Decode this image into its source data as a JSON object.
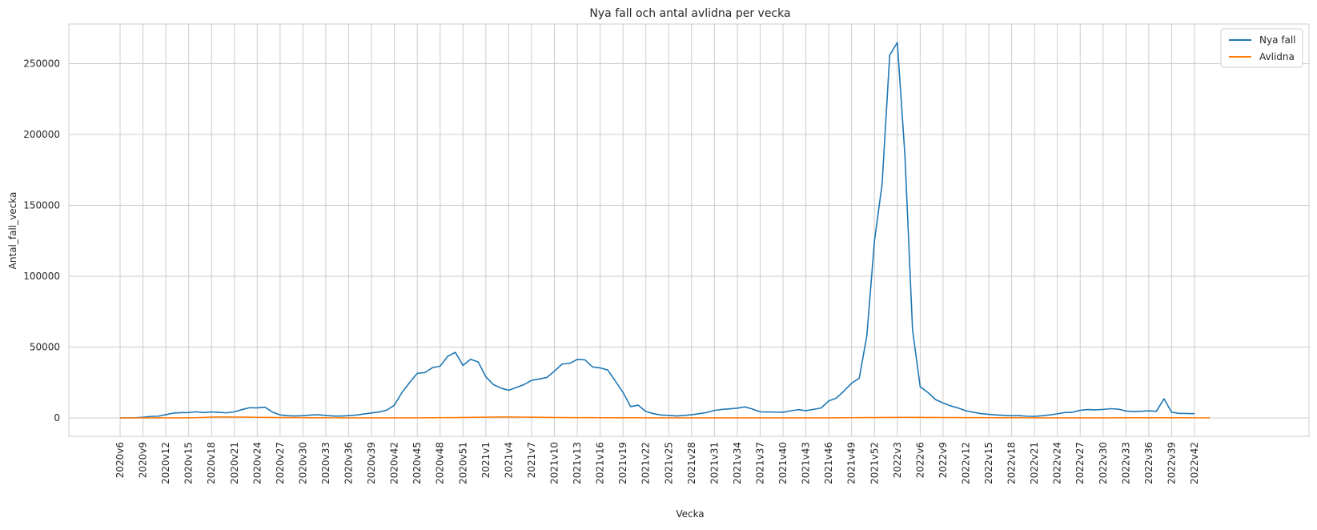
{
  "chart_data": {
    "type": "line",
    "title": "Nya fall och antal avlidna per vecka",
    "xlabel": "Vecka",
    "ylabel": "Antal_fall_vecka",
    "ylim": [
      -13000,
      278000
    ],
    "yticks": [
      0,
      50000,
      100000,
      150000,
      200000,
      250000
    ],
    "xtick_labels": [
      "2020v6",
      "2020v9",
      "2020v12",
      "2020v15",
      "2020v18",
      "2020v21",
      "2020v24",
      "2020v27",
      "2020v30",
      "2020v33",
      "2020v36",
      "2020v39",
      "2020v42",
      "2020v45",
      "2020v48",
      "2020v51",
      "2021v1",
      "2021v4",
      "2021v7",
      "2021v10",
      "2021v13",
      "2021v16",
      "2021v19",
      "2021v22",
      "2021v25",
      "2021v28",
      "2021v31",
      "2021v34",
      "2021v37",
      "2021v40",
      "2021v43",
      "2021v46",
      "2021v49",
      "2021v52",
      "2022v3",
      "2022v6",
      "2022v9",
      "2022v12",
      "2022v15",
      "2022v18",
      "2022v21",
      "2022v24",
      "2022v27",
      "2022v30",
      "2022v33",
      "2022v36",
      "2022v39",
      "2022v42"
    ],
    "grid": true,
    "legend_position": "top-right",
    "series": [
      {
        "name": "Nya fall",
        "color": "#1f77b4",
        "values": [
          1,
          10,
          90,
          450,
          1050,
          1200,
          2300,
          3400,
          3700,
          3800,
          4300,
          3800,
          4200,
          3900,
          3600,
          4300,
          5900,
          7200,
          7100,
          7600,
          4100,
          2100,
          1600,
          1400,
          1600,
          2000,
          2200,
          1700,
          1300,
          1300,
          1600,
          2000,
          2800,
          3500,
          4200,
          5500,
          9000,
          18000,
          25000,
          31500,
          32000,
          35500,
          36500,
          43500,
          46300,
          37000,
          41400,
          39500,
          29000,
          23500,
          21000,
          19500,
          21500,
          23500,
          26500,
          27500,
          28500,
          33000,
          38000,
          38500,
          41300,
          41000,
          36000,
          35300,
          33800,
          26000,
          18000,
          8000,
          9000,
          4500,
          3000,
          2000,
          1800,
          1400,
          1700,
          2200,
          3000,
          3800,
          5300,
          6000,
          6400,
          6900,
          7800,
          6200,
          4300,
          4200,
          4100,
          4000,
          5000,
          5800,
          5100,
          6000,
          7000,
          12000,
          14000,
          19000,
          24500,
          28000,
          58000,
          125000,
          165000,
          256000,
          265000,
          185000,
          62000,
          22000,
          18000,
          13000,
          10500,
          8500,
          7000,
          5000,
          4000,
          3000,
          2500,
          2100,
          1800,
          1500,
          1600,
          1200,
          1100,
          1500,
          2100,
          2900,
          3800,
          4000,
          5400,
          5900,
          5700,
          6000,
          6500,
          6200,
          4900,
          4500,
          4700,
          5000,
          4700,
          13500,
          4000,
          3200,
          3100,
          3000
        ],
        "values_step": "1 week"
      },
      {
        "name": "Avlidna",
        "color": "#ff7f0e",
        "values": [
          0,
          0,
          0,
          0,
          5,
          10,
          20,
          20,
          35,
          80,
          150,
          350,
          600,
          680,
          650,
          600,
          570,
          500,
          420,
          370,
          300,
          260,
          220,
          200,
          160,
          120,
          100,
          80,
          70,
          60,
          50,
          40,
          35,
          30,
          30,
          30,
          35,
          40,
          50,
          70,
          90,
          120,
          160,
          200,
          260,
          330,
          420,
          480,
          550,
          600,
          640,
          660,
          620,
          560,
          500,
          440,
          380,
          320,
          270,
          230,
          200,
          180,
          160,
          140,
          120,
          110,
          100,
          90,
          80,
          70,
          60,
          55,
          50,
          45,
          40,
          40,
          40,
          40,
          40,
          40,
          40,
          40,
          40,
          40,
          40,
          40,
          40,
          40,
          40,
          40,
          40,
          40,
          50,
          60,
          80,
          100,
          140,
          180,
          220,
          260,
          300,
          350,
          400,
          420,
          400,
          370,
          340,
          310,
          280,
          250,
          220,
          200,
          180,
          160,
          140,
          120,
          100,
          90,
          80,
          70,
          60,
          55,
          50,
          45,
          40,
          40,
          40,
          45,
          50,
          60,
          70,
          80,
          90,
          100,
          100,
          100,
          100,
          90,
          90,
          80,
          80,
          70,
          70,
          60
        ]
      }
    ]
  }
}
